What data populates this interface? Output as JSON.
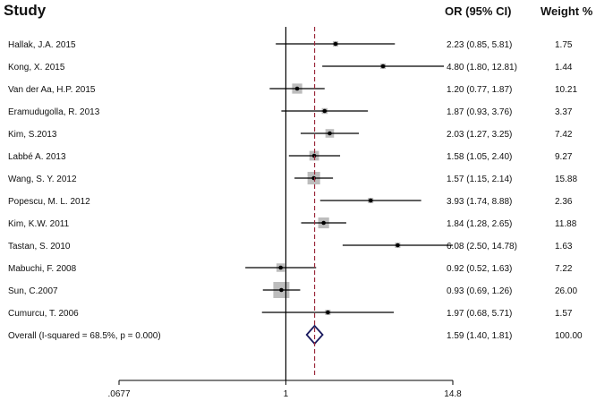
{
  "chart_data": {
    "type": "forest",
    "headers": {
      "study": "Study",
      "effect": "OR (95% CI)",
      "weight": "Weight %"
    },
    "x_scale": "log",
    "xlim": [
      0.0677,
      14.8
    ],
    "xticks": [
      ".0677",
      "1",
      "14.8"
    ],
    "overall_line": 1.59,
    "null_line": 1,
    "studies": [
      {
        "name": "Hallak, J.A. 2015",
        "or": 2.23,
        "lo": 0.85,
        "hi": 5.81,
        "ci_text": "2.23 (0.85, 5.81)",
        "weight": 1.75,
        "weight_text": "1.75"
      },
      {
        "name": "Kong, X. 2015",
        "or": 4.8,
        "lo": 1.8,
        "hi": 12.81,
        "ci_text": "4.80 (1.80, 12.81)",
        "weight": 1.44,
        "weight_text": "1.44"
      },
      {
        "name": "Van der Aa, H.P. 2015",
        "or": 1.2,
        "lo": 0.77,
        "hi": 1.87,
        "ci_text": "1.20 (0.77, 1.87)",
        "weight": 10.21,
        "weight_text": "10.21"
      },
      {
        "name": "Eramudugolla, R. 2013",
        "or": 1.87,
        "lo": 0.93,
        "hi": 3.76,
        "ci_text": "1.87 (0.93, 3.76)",
        "weight": 3.37,
        "weight_text": "3.37"
      },
      {
        "name": "Kim, S.2013",
        "or": 2.03,
        "lo": 1.27,
        "hi": 3.25,
        "ci_text": "2.03 (1.27, 3.25)",
        "weight": 7.42,
        "weight_text": "7.42"
      },
      {
        "name": "Labbé A. 2013",
        "or": 1.58,
        "lo": 1.05,
        "hi": 2.4,
        "ci_text": "1.58 (1.05, 2.40)",
        "weight": 9.27,
        "weight_text": "9.27"
      },
      {
        "name": "Wang, S. Y. 2012",
        "or": 1.57,
        "lo": 1.15,
        "hi": 2.14,
        "ci_text": "1.57 (1.15, 2.14)",
        "weight": 15.88,
        "weight_text": "15.88"
      },
      {
        "name": "Popescu, M. L. 2012",
        "or": 3.93,
        "lo": 1.74,
        "hi": 8.88,
        "ci_text": "3.93 (1.74, 8.88)",
        "weight": 2.36,
        "weight_text": "2.36"
      },
      {
        "name": "Kim, K.W. 2011",
        "or": 1.84,
        "lo": 1.28,
        "hi": 2.65,
        "ci_text": "1.84 (1.28, 2.65)",
        "weight": 11.88,
        "weight_text": "11.88"
      },
      {
        "name": "Tastan, S. 2010",
        "or": 6.08,
        "lo": 2.5,
        "hi": 14.78,
        "ci_text": "6.08 (2.50, 14.78)",
        "weight": 1.63,
        "weight_text": "1.63"
      },
      {
        "name": "Mabuchi, F. 2008",
        "or": 0.92,
        "lo": 0.52,
        "hi": 1.63,
        "ci_text": "0.92 (0.52, 1.63)",
        "weight": 7.22,
        "weight_text": "7.22"
      },
      {
        "name": "Sun, C.2007",
        "or": 0.93,
        "lo": 0.69,
        "hi": 1.26,
        "ci_text": "0.93 (0.69, 1.26)",
        "weight": 26.0,
        "weight_text": "26.00"
      },
      {
        "name": "Cumurcu, T. 2006",
        "or": 1.97,
        "lo": 0.68,
        "hi": 5.71,
        "ci_text": "1.97 (0.68, 5.71)",
        "weight": 1.57,
        "weight_text": "1.57"
      }
    ],
    "overall": {
      "name": "Overall  (I-squared = 68.5%, p = 0.000)",
      "or": 1.59,
      "lo": 1.4,
      "hi": 1.81,
      "ci_text": "1.59 (1.40, 1.81)",
      "weight_text": "100.00"
    },
    "colors": {
      "box": "#bdbdbd",
      "line": "#000000",
      "dash": "#9b2a3c",
      "diamond": "#1a1a5e"
    }
  }
}
